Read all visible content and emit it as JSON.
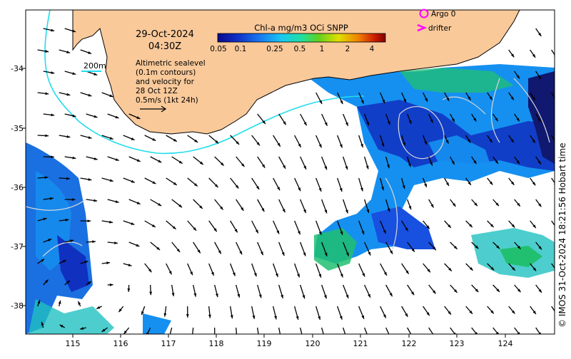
{
  "map": {
    "date": "29-Oct-2024",
    "time": "04:30Z",
    "depth_contour_label": "200m",
    "altimetry_caption": [
      "Altimetric sealevel",
      "(0.1m contours)",
      "and velocity for",
      "28 Oct 12Z",
      "0.5m/s (1kt 24h)"
    ],
    "copyright": "© IMOS 31-Oct-2024 18:21:56 Hobart time",
    "colorbar": {
      "title": "Chl-a mg/m3 OCi SNPP",
      "ticks": [
        "0.05",
        "0.1",
        "0.25",
        "0.5",
        "1",
        "2",
        "4"
      ]
    },
    "legend": {
      "argo_label": "Argo 0",
      "drifter_label": "drifter",
      "marker_color": "#ff00ff"
    },
    "longitude_ticks": [
      "115",
      "116",
      "117",
      "118",
      "119",
      "120",
      "121",
      "122",
      "123",
      "124"
    ],
    "latitude_ticks": [
      "-34",
      "-35",
      "-36",
      "-37",
      "-38"
    ],
    "colors": {
      "land": "#f9c99a",
      "contour_200m": "#22ddee",
      "ssh_contour": "#d8d8d8",
      "chl_low": "#1030c0",
      "chl_mid": "#1590f0",
      "chl_high": "#20c070"
    }
  }
}
